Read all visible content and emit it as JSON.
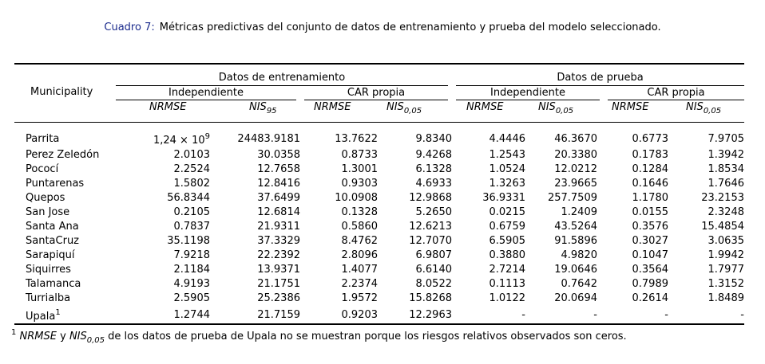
{
  "caption": {
    "label": "Cuadro 7:",
    "text": "Métricas predictivas del conjunto de datos de entrenamiento y prueba del modelo seleccionado."
  },
  "header": {
    "municipality": "Municipality",
    "train_group": "Datos de entrenamiento",
    "test_group": "Datos de prueba",
    "independiente": "Independiente",
    "car_propia": "CAR propia",
    "nrmse": "NRMSE",
    "nis": "NIS",
    "sub95": "95",
    "sub005": "0,05"
  },
  "rows": [
    [
      "Parrita",
      "1,24 × 10",
      "24483.9181",
      "13.7622",
      "9.8340",
      "4.4446",
      "46.3670",
      "0.6773",
      "7.9705"
    ],
    [
      "Perez Zeledón",
      "2.0103",
      "30.0358",
      "0.8733",
      "9.4268",
      "1.2543",
      "20.3380",
      "0.1783",
      "1.3942"
    ],
    [
      "Pococí",
      "2.2524",
      "12.7658",
      "1.3001",
      "6.1328",
      "1.0524",
      "12.0212",
      "0.1284",
      "1.8534"
    ],
    [
      "Puntarenas",
      "1.5802",
      "12.8416",
      "0.9303",
      "4.6933",
      "1.3263",
      "23.9665",
      "0.1646",
      "1.7646"
    ],
    [
      "Quepos",
      "56.8344",
      "37.6499",
      "10.0908",
      "12.9868",
      "36.9331",
      "257.7509",
      "1.1780",
      "23.2153"
    ],
    [
      "San Jose",
      "0.2105",
      "12.6814",
      "0.1328",
      "5.2650",
      "0.0215",
      "1.2409",
      "0.0155",
      "2.3248"
    ],
    [
      "Santa Ana",
      "0.7837",
      "21.9311",
      "0.5860",
      "12.6213",
      "0.6759",
      "43.5264",
      "0.3576",
      "15.4854"
    ],
    [
      "SantaCruz",
      "35.1198",
      "37.3329",
      "8.4762",
      "12.7070",
      "6.5905",
      "91.5896",
      "0.3027",
      "3.0635"
    ],
    [
      "Sarapiquí",
      "7.9218",
      "22.2392",
      "2.8096",
      "6.9807",
      "0.3880",
      "4.9820",
      "0.1047",
      "1.9942"
    ],
    [
      "Siquirres",
      "2.1184",
      "13.9371",
      "1.4077",
      "6.6140",
      "2.7214",
      "19.0646",
      "0.3564",
      "1.7977"
    ],
    [
      "Talamanca",
      "4.9193",
      "21.1751",
      "2.2374",
      "8.0522",
      "0.1113",
      "0.7642",
      "0.7989",
      "1.3152"
    ],
    [
      "Turrialba",
      "2.5905",
      "25.2386",
      "1.9572",
      "15.8268",
      "1.0122",
      "20.0694",
      "0.2614",
      "1.8489"
    ],
    [
      "Upala",
      "1.2744",
      "21.7159",
      "0.9203",
      "12.2963",
      "-",
      "-",
      "-",
      "-"
    ]
  ],
  "parrita_exp": "9",
  "upala_mark": "1",
  "footnote": {
    "mark": "1",
    "nrmse": "NRMSE",
    "y": "y",
    "nis": "NIS",
    "sub": "0,05",
    "text": "de los datos de prueba de Upala no se muestran porque los riesgos relativos observados son ceros."
  }
}
